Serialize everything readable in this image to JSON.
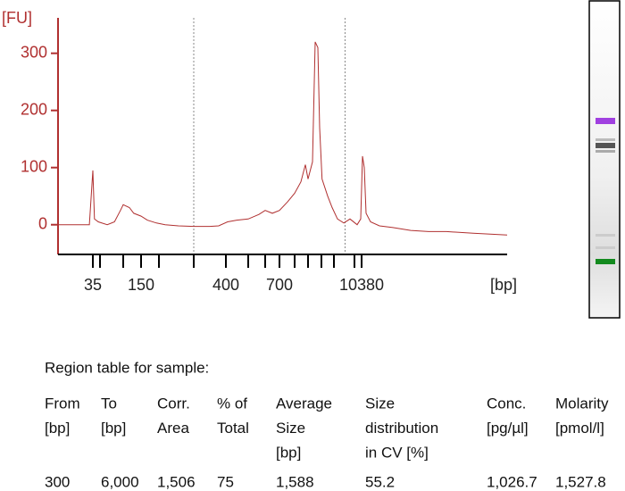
{
  "chart_data": {
    "type": "line",
    "ylabel": "[FU]",
    "xlabel": "[bp]",
    "color": "#b03030",
    "ylim": [
      -52,
      362
    ],
    "yticks": [
      0,
      100,
      200,
      300
    ],
    "xticks": [
      35,
      {
        "value": 50,
        "label": null
      },
      {
        "value": 100,
        "label": null
      },
      150,
      {
        "value": 200,
        "label": null
      },
      {
        "value": 300,
        "label": null
      },
      400,
      {
        "value": 500,
        "label": null
      },
      {
        "value": 600,
        "label": null
      },
      700,
      {
        "value": 1000,
        "label": null
      },
      {
        "value": 2000,
        "label": null
      },
      {
        "value": 3000,
        "label": null
      },
      {
        "value": 5000,
        "label": null
      },
      {
        "value": 7000,
        "label": null
      },
      10380
    ],
    "region": [
      300,
      6000
    ],
    "x": [
      14,
      32,
      35,
      38,
      46,
      62,
      77,
      92,
      100,
      115,
      127,
      150,
      166,
      192,
      215,
      251,
      300,
      346,
      375,
      407,
      446,
      500,
      561,
      600,
      648,
      700,
      847,
      1000,
      1383,
      1741,
      2000,
      2289,
      2482,
      2694,
      2841,
      3076,
      3873,
      4648,
      5303,
      5880,
      6504,
      8115,
      9885,
      10622,
      11122,
      11647,
      13068,
      16452,
      23240,
      36830,
      58370,
      92520,
      184600,
      442800
    ],
    "values": [
      0,
      0,
      95,
      10,
      5,
      0,
      5,
      25,
      35,
      30,
      20,
      15,
      8,
      3,
      0,
      -2,
      -3,
      -3,
      -2,
      5,
      8,
      10,
      18,
      25,
      20,
      25,
      40,
      55,
      75,
      105,
      80,
      110,
      320,
      310,
      170,
      80,
      50,
      30,
      10,
      3,
      10,
      0,
      10,
      120,
      100,
      20,
      5,
      -2,
      -5,
      -10,
      -12,
      -12,
      -15,
      -18
    ]
  },
  "table": {
    "title": "Region table for sample:",
    "columns": [
      [
        "From",
        "[bp]"
      ],
      [
        "To",
        "[bp]"
      ],
      [
        "Corr.",
        "Area"
      ],
      [
        "% of",
        "Total"
      ],
      [
        "Average",
        "Size",
        "[bp]"
      ],
      [
        "Size",
        "distribution",
        "in CV [%]"
      ],
      [
        "Conc.",
        "[pg/µl]"
      ],
      [
        "Molarity",
        "[pmol/l]"
      ]
    ],
    "rows": [
      [
        "300",
        "6,000",
        "1,506",
        "75",
        "1,588",
        "55.2",
        "1,026.7",
        "1,527.8"
      ]
    ]
  }
}
